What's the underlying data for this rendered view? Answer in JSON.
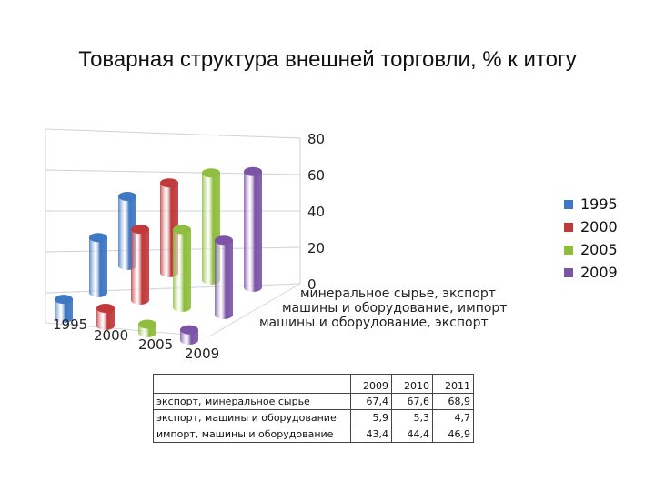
{
  "title": "Товарная структура внешней торговли, % к итогу",
  "chart_data": {
    "type": "bar",
    "title": "Товарная структура внешней торговли, % к итогу",
    "categories": [
      "минеральное сырье, экспорт",
      "машины и оборудование, импорт",
      "машины и оборудование, экспорт"
    ],
    "series": [
      {
        "name": "1995",
        "color": "#3e77c2",
        "values": [
          40,
          32,
          11
        ]
      },
      {
        "name": "2000",
        "color": "#c0393b",
        "values": [
          52,
          41,
          10
        ]
      },
      {
        "name": "2005",
        "color": "#8fbd3e",
        "values": [
          62,
          45,
          5
        ]
      },
      {
        "name": "2009",
        "color": "#7b54a6",
        "values": [
          67,
          43,
          6
        ]
      }
    ],
    "ylim": [
      0,
      80
    ],
    "yticks": [
      "0",
      "20",
      "40",
      "60",
      "80"
    ],
    "grid": true,
    "legend": "right"
  },
  "table": {
    "header": [
      "",
      "2009",
      "2010",
      "2011"
    ],
    "rows": [
      [
        "экспорт, минеральное сырье",
        "67,4",
        "67,6",
        "68,9"
      ],
      [
        "экспорт, машины и оборудование",
        "5,9",
        "5,3",
        "4,7"
      ],
      [
        "импорт, машины и оборудование",
        "43,4",
        "44,4",
        "46,9"
      ]
    ]
  }
}
